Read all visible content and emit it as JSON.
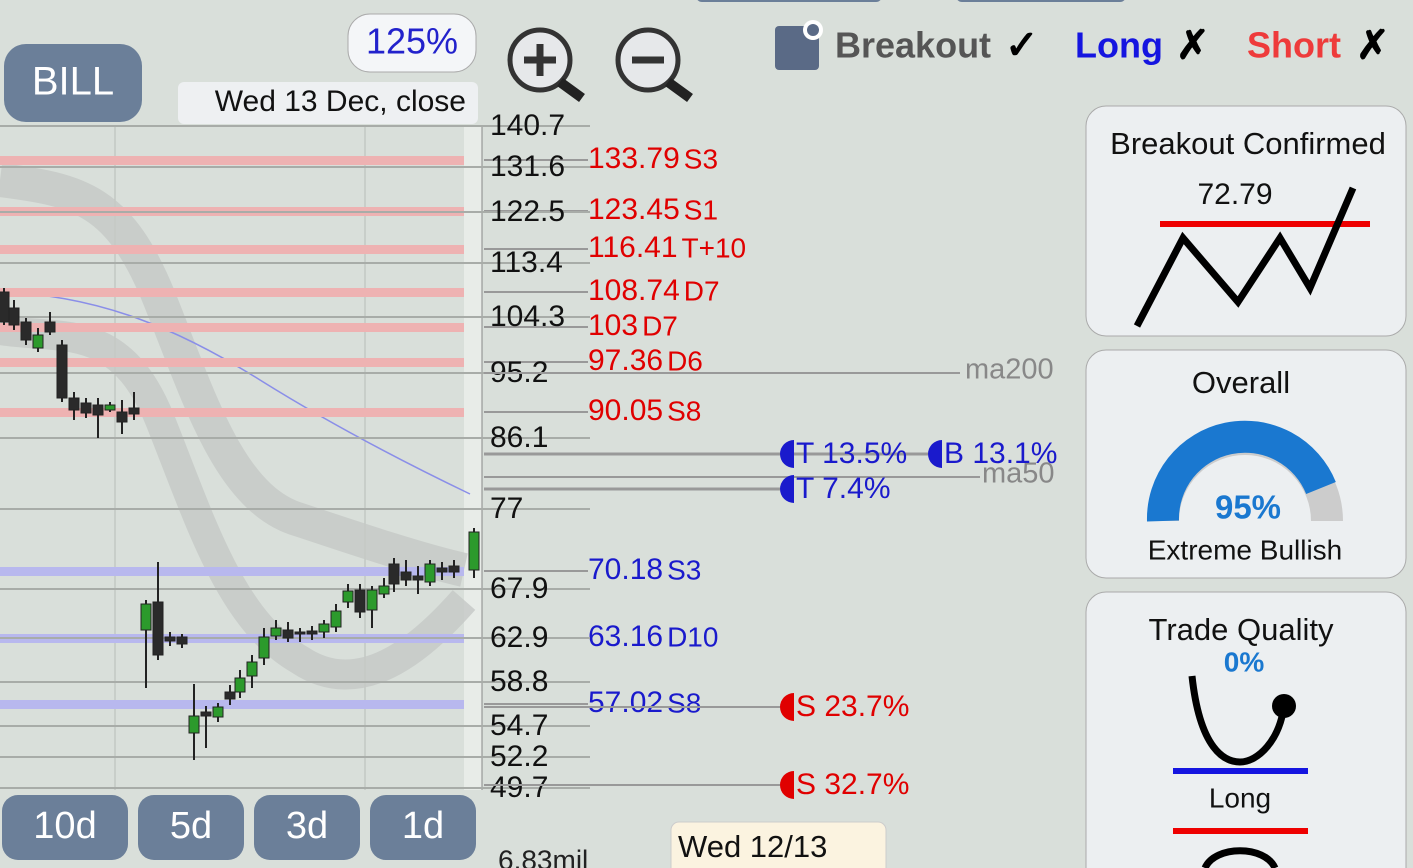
{
  "ticker": "BILL",
  "zoom": "125%",
  "date": "Wed 13 Dec, close",
  "signals": [
    {
      "label": "Breakout",
      "mark": "✓",
      "color": "#555"
    },
    {
      "label": "Long",
      "mark": "✗",
      "color": "#1515e0"
    },
    {
      "label": "Short",
      "mark": "✗",
      "color": "#ee3b3b"
    }
  ],
  "price_ticks": [
    "140.7",
    "131.6",
    "122.5",
    "113.4",
    "104.3",
    "95.2",
    "86.1",
    "77",
    "67.9",
    "62.9",
    "58.8",
    "54.7",
    "52.2",
    "49.7"
  ],
  "levels": [
    {
      "price": "133.79",
      "tag": "S3",
      "color": "#e00000"
    },
    {
      "price": "123.45",
      "tag": "S1",
      "color": "#e00000"
    },
    {
      "price": "116.41",
      "tag": "T+10",
      "color": "#e00000"
    },
    {
      "price": "108.74",
      "tag": "D7",
      "color": "#e00000"
    },
    {
      "price": "103",
      "tag": "D7",
      "color": "#e00000"
    },
    {
      "price": "97.36",
      "tag": "D6",
      "color": "#e00000"
    },
    {
      "price": "90.05",
      "tag": "S8",
      "color": "#e00000"
    },
    {
      "price": "70.18",
      "tag": "S3",
      "color": "#1a1acc"
    },
    {
      "price": "63.16",
      "tag": "D10",
      "color": "#1a1acc"
    },
    {
      "price": "57.02",
      "tag": "S8",
      "color": "#1a1acc"
    }
  ],
  "ma_labels": [
    "ma200",
    "ma50"
  ],
  "targets": [
    {
      "label": "T 13.5%",
      "color": "#1a1acc"
    },
    {
      "label": "B 13.1%",
      "color": "#1a1acc"
    },
    {
      "label": "T 7.4%",
      "color": "#1a1acc"
    },
    {
      "label": "S 23.7%",
      "color": "#e00000"
    },
    {
      "label": "S 32.7%",
      "color": "#e00000"
    }
  ],
  "periods": [
    "10d",
    "5d",
    "3d",
    "1d"
  ],
  "volume": "6.83mil",
  "tooltip_date": "Wed 12/13",
  "panels": {
    "breakout": {
      "title": "Breakout Confirmed",
      "value": "72.79"
    },
    "overall": {
      "title": "Overall",
      "value": "95%",
      "label": "Extreme Bullish"
    },
    "trade_quality": {
      "title": "Trade Quality",
      "value": "0%",
      "label": "Long"
    }
  }
}
